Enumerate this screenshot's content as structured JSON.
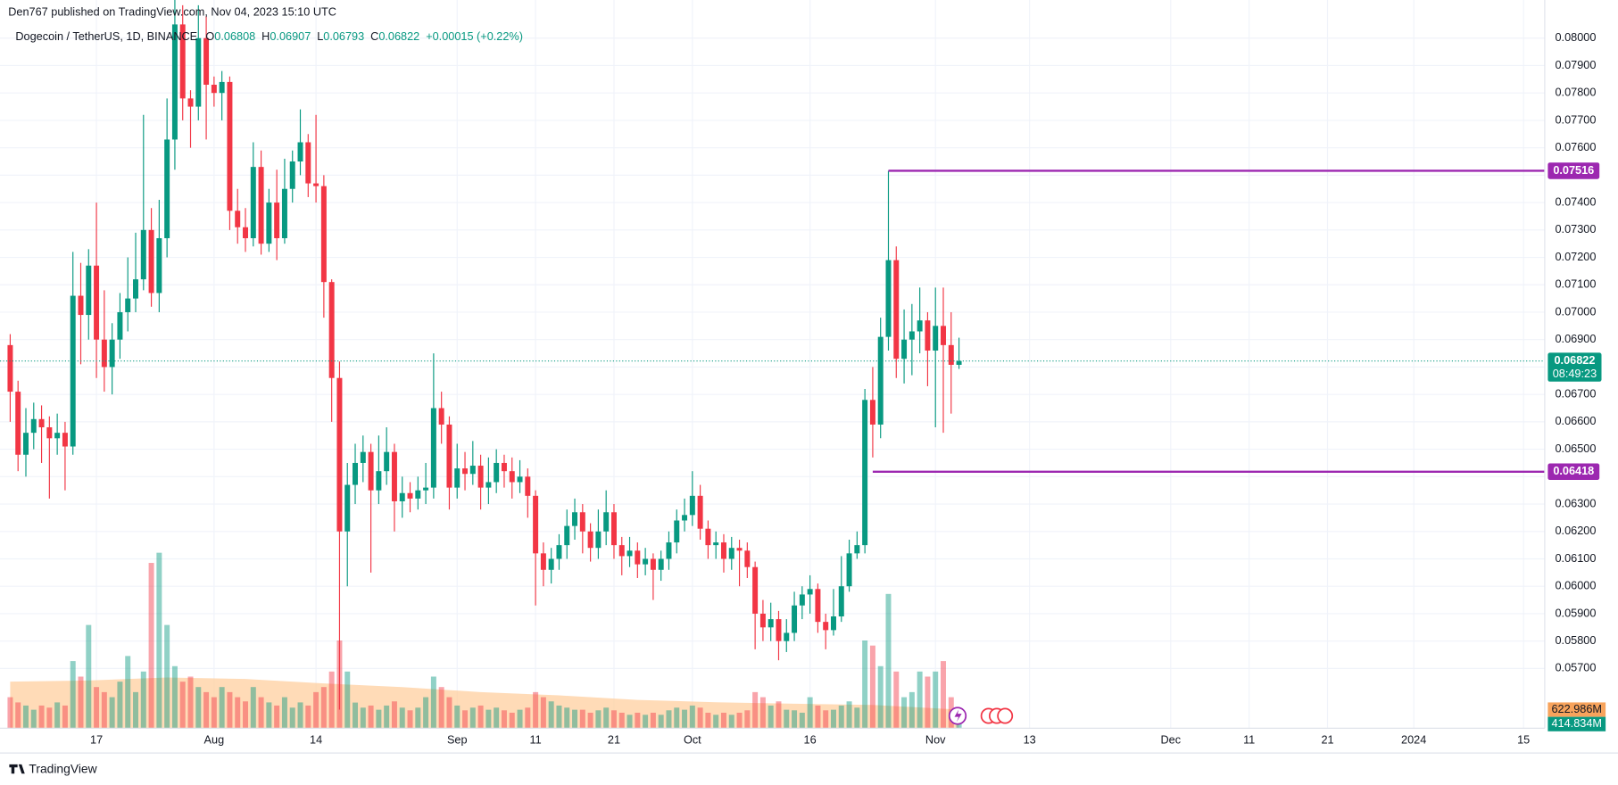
{
  "chart_data": {
    "type": "candlestick",
    "header": "Den767 published on TradingView.com, Nov 04, 2023 15:10 UTC",
    "symbol": "Dogecoin / TetherUS, 1D, BINANCE",
    "legend_keys": [
      "O",
      "H",
      "L",
      "C"
    ],
    "change_label": "+0.00015 (+0.22%)",
    "countdown": "08:49:23",
    "footer": "TradingView",
    "up_color": "#089981",
    "down_color": "#f23645",
    "level_color": "#9c27b0",
    "ma_color": "#ffcc99",
    "xlim": [
      -1.3,
      195.7
    ],
    "xticks": [
      {
        "value": 11,
        "label": "17"
      },
      {
        "value": 26,
        "label": "Aug"
      },
      {
        "value": 39,
        "label": "14"
      },
      {
        "value": 57,
        "label": "Sep"
      },
      {
        "value": 67,
        "label": "11"
      },
      {
        "value": 77,
        "label": "21"
      },
      {
        "value": 87,
        "label": "Oct"
      },
      {
        "value": 102,
        "label": "16"
      },
      {
        "value": 118,
        "label": "Nov"
      },
      {
        "value": 130,
        "label": "13"
      },
      {
        "value": 148,
        "label": "Dec"
      },
      {
        "value": 158,
        "label": "11"
      },
      {
        "value": 168,
        "label": "21"
      },
      {
        "value": 179,
        "label": "2024"
      },
      {
        "value": 193,
        "label": "15"
      }
    ],
    "ylim": [
      0.05482,
      0.08139
    ],
    "yticks": [
      {
        "value": 0.057,
        "label": "0.05700"
      },
      {
        "value": 0.058,
        "label": "0.05800"
      },
      {
        "value": 0.059,
        "label": "0.05900"
      },
      {
        "value": 0.06,
        "label": "0.06000"
      },
      {
        "value": 0.061,
        "label": "0.06100"
      },
      {
        "value": 0.062,
        "label": "0.06200"
      },
      {
        "value": 0.063,
        "label": "0.06300"
      },
      {
        "value": 0.064,
        "label": "0.06400"
      },
      {
        "value": 0.065,
        "label": "0.06500"
      },
      {
        "value": 0.066,
        "label": "0.06600"
      },
      {
        "value": 0.067,
        "label": "0.06700"
      },
      {
        "value": 0.068,
        "label": "0.06800"
      },
      {
        "value": 0.069,
        "label": "0.06900"
      },
      {
        "value": 0.07,
        "label": "0.07000"
      },
      {
        "value": 0.071,
        "label": "0.07100"
      },
      {
        "value": 0.072,
        "label": "0.07200"
      },
      {
        "value": 0.073,
        "label": "0.07300"
      },
      {
        "value": 0.074,
        "label": "0.07400"
      },
      {
        "value": 0.075,
        "label": "0.07500"
      },
      {
        "value": 0.076,
        "label": "0.07600"
      },
      {
        "value": 0.077,
        "label": "0.07700"
      },
      {
        "value": 0.078,
        "label": "0.07800"
      },
      {
        "value": 0.079,
        "label": "0.07900"
      },
      {
        "value": 0.08,
        "label": "0.08000"
      }
    ],
    "grid": true,
    "open": [
      0.0688,
      0.0671,
      0.0648,
      0.0656,
      0.0661,
      0.0658,
      0.0654,
      0.0656,
      0.0651,
      0.0706,
      0.0699,
      0.0717,
      0.069,
      0.068,
      0.069,
      0.07,
      0.0705,
      0.0712,
      0.073,
      0.0707,
      0.0727,
      0.0763,
      0.0805,
      0.0778,
      0.0775,
      0.08,
      0.0783,
      0.078,
      0.0784,
      0.0737,
      0.0731,
      0.0727,
      0.0753,
      0.0725,
      0.074,
      0.0727,
      0.0745,
      0.0755,
      0.0762,
      0.0747,
      0.0746,
      0.0711,
      0.0676,
      0.062,
      0.0637,
      0.0645,
      0.0649,
      0.0635,
      0.0642,
      0.0649,
      0.0631,
      0.0634,
      0.0632,
      0.0635,
      0.0636,
      0.0665,
      0.0659,
      0.0636,
      0.0643,
      0.0641,
      0.0644,
      0.0636,
      0.0638,
      0.0645,
      0.0642,
      0.0638,
      0.064,
      0.0633,
      0.0612,
      0.0606,
      0.061,
      0.0615,
      0.0622,
      0.0627,
      0.062,
      0.0614,
      0.062,
      0.0627,
      0.0615,
      0.0611,
      0.0613,
      0.0608,
      0.061,
      0.0606,
      0.061,
      0.0616,
      0.0624,
      0.0626,
      0.0633,
      0.0621,
      0.0615,
      0.0616,
      0.061,
      0.0614,
      0.0613,
      0.0607,
      0.059,
      0.0585,
      0.0588,
      0.058,
      0.0583,
      0.0593,
      0.0597,
      0.0599,
      0.0587,
      0.0584,
      0.0589,
      0.06,
      0.0612,
      0.0615,
      0.0668,
      0.0659,
      0.0691,
      0.0719,
      0.0683,
      0.069,
      0.0693,
      0.0697,
      0.0686,
      0.0695,
      0.0688,
      0.06808
    ],
    "high": [
      0.0692,
      0.0675,
      0.0665,
      0.0667,
      0.0666,
      0.0662,
      0.0663,
      0.066,
      0.0722,
      0.0718,
      0.0723,
      0.074,
      0.0708,
      0.0696,
      0.0707,
      0.072,
      0.0729,
      0.0772,
      0.0738,
      0.0741,
      0.0778,
      0.0815,
      0.0812,
      0.0781,
      0.0812,
      0.0808,
      0.0786,
      0.0788,
      0.0786,
      0.0745,
      0.0738,
      0.0762,
      0.0759,
      0.0745,
      0.0752,
      0.0756,
      0.0759,
      0.0774,
      0.0765,
      0.0772,
      0.075,
      0.0712,
      0.0682,
      0.0645,
      0.0652,
      0.0655,
      0.0652,
      0.0655,
      0.0658,
      0.0652,
      0.064,
      0.0638,
      0.064,
      0.0645,
      0.0685,
      0.0671,
      0.0662,
      0.0652,
      0.0649,
      0.0653,
      0.0648,
      0.0647,
      0.065,
      0.0648,
      0.0647,
      0.0646,
      0.0643,
      0.0635,
      0.0616,
      0.0614,
      0.0619,
      0.0628,
      0.0632,
      0.063,
      0.0623,
      0.0628,
      0.0635,
      0.063,
      0.0618,
      0.0618,
      0.0616,
      0.0614,
      0.0612,
      0.0613,
      0.062,
      0.0628,
      0.0632,
      0.0642,
      0.0637,
      0.0624,
      0.062,
      0.0619,
      0.0618,
      0.0617,
      0.0616,
      0.0609,
      0.0595,
      0.0594,
      0.0591,
      0.0588,
      0.0598,
      0.06,
      0.0604,
      0.0601,
      0.059,
      0.0599,
      0.0611,
      0.0617,
      0.062,
      0.0672,
      0.068,
      0.0698,
      0.07516,
      0.0724,
      0.0701,
      0.0703,
      0.0709,
      0.07,
      0.0709,
      0.0709,
      0.07,
      0.06907
    ],
    "low": [
      0.066,
      0.0642,
      0.064,
      0.065,
      0.0645,
      0.0632,
      0.0648,
      0.0635,
      0.0648,
      0.0681,
      0.069,
      0.0676,
      0.0671,
      0.067,
      0.0683,
      0.0693,
      0.07,
      0.0708,
      0.0702,
      0.07,
      0.072,
      0.0752,
      0.077,
      0.076,
      0.077,
      0.0763,
      0.0775,
      0.077,
      0.073,
      0.0725,
      0.0722,
      0.0724,
      0.0721,
      0.0722,
      0.0719,
      0.0725,
      0.074,
      0.075,
      0.0742,
      0.074,
      0.0698,
      0.066,
      0.0555,
      0.06,
      0.063,
      0.0638,
      0.0605,
      0.063,
      0.0637,
      0.062,
      0.0625,
      0.0627,
      0.0628,
      0.063,
      0.0632,
      0.0652,
      0.0628,
      0.0632,
      0.0635,
      0.0637,
      0.0628,
      0.063,
      0.0634,
      0.0636,
      0.0632,
      0.0634,
      0.0625,
      0.0593,
      0.06,
      0.0601,
      0.0606,
      0.061,
      0.0617,
      0.0612,
      0.0609,
      0.061,
      0.0615,
      0.061,
      0.0604,
      0.0607,
      0.0603,
      0.0604,
      0.0595,
      0.0602,
      0.0606,
      0.0612,
      0.062,
      0.0622,
      0.0617,
      0.061,
      0.061,
      0.0605,
      0.0606,
      0.06,
      0.0603,
      0.0577,
      0.058,
      0.058,
      0.0573,
      0.0576,
      0.058,
      0.0588,
      0.059,
      0.0583,
      0.0577,
      0.0582,
      0.0587,
      0.0598,
      0.061,
      0.0612,
      0.0647,
      0.0654,
      0.0686,
      0.0676,
      0.0674,
      0.0677,
      0.0685,
      0.0673,
      0.0658,
      0.0656,
      0.0663,
      0.06793
    ],
    "close": [
      0.0671,
      0.0648,
      0.0656,
      0.0661,
      0.0658,
      0.0654,
      0.0656,
      0.0651,
      0.0706,
      0.0699,
      0.0717,
      0.069,
      0.068,
      0.069,
      0.07,
      0.0705,
      0.0712,
      0.073,
      0.0707,
      0.0727,
      0.0763,
      0.0805,
      0.0778,
      0.0775,
      0.08,
      0.0783,
      0.078,
      0.0784,
      0.0737,
      0.0731,
      0.0727,
      0.0753,
      0.0725,
      0.074,
      0.0727,
      0.0745,
      0.0755,
      0.0762,
      0.0747,
      0.0746,
      0.0711,
      0.0676,
      0.062,
      0.0637,
      0.0645,
      0.0649,
      0.0635,
      0.0642,
      0.0649,
      0.0631,
      0.0634,
      0.0632,
      0.0635,
      0.0636,
      0.0665,
      0.0659,
      0.0636,
      0.0643,
      0.0641,
      0.0644,
      0.0636,
      0.0638,
      0.0645,
      0.0642,
      0.0638,
      0.064,
      0.0633,
      0.0612,
      0.0606,
      0.061,
      0.0615,
      0.0622,
      0.0627,
      0.062,
      0.0614,
      0.062,
      0.0627,
      0.0615,
      0.0611,
      0.0613,
      0.0608,
      0.061,
      0.0606,
      0.061,
      0.0616,
      0.0624,
      0.0626,
      0.0633,
      0.0621,
      0.0615,
      0.0616,
      0.061,
      0.0614,
      0.0613,
      0.0607,
      0.059,
      0.0585,
      0.0588,
      0.058,
      0.0583,
      0.0593,
      0.0597,
      0.0599,
      0.0587,
      0.0584,
      0.0589,
      0.06,
      0.0612,
      0.0615,
      0.0668,
      0.0659,
      0.0691,
      0.0719,
      0.0683,
      0.069,
      0.0693,
      0.0697,
      0.0686,
      0.0695,
      0.0688,
      0.06808,
      0.06822
    ],
    "vlim": [
      0,
      24400
    ],
    "volume": [
      1040,
      865,
      760,
      620,
      760,
      690,
      865,
      760,
      2250,
      1730,
      3460,
      1380,
      1210,
      1040,
      1560,
      2420,
      1210,
      1900,
      5540,
      5880,
      3460,
      2080,
      1560,
      1730,
      1380,
      1210,
      1040,
      1380,
      1210,
      1040,
      900,
      1380,
      1040,
      865,
      760,
      1040,
      690,
      865,
      760,
      1210,
      1380,
      1900,
      2940,
      1900,
      860,
      690,
      760,
      620,
      760,
      900,
      690,
      600,
      690,
      1040,
      1730,
      1380,
      1040,
      760,
      600,
      690,
      760,
      620,
      690,
      600,
      520,
      620,
      690,
      1210,
      1040,
      900,
      760,
      690,
      620,
      620,
      520,
      600,
      690,
      600,
      520,
      450,
      520,
      450,
      520,
      450,
      600,
      690,
      620,
      760,
      690,
      520,
      450,
      520,
      450,
      520,
      600,
      1210,
      1040,
      760,
      900,
      620,
      600,
      520,
      1040,
      760,
      600,
      620,
      760,
      900,
      690,
      2940,
      2770,
      2080,
      4500,
      1900,
      1040,
      1210,
      1900,
      1730,
      1900,
      2250,
      1040,
      414.834
    ],
    "volume_label": "414.834M",
    "volume_ma": {
      "x": [
        0,
        10,
        20,
        30,
        40,
        50,
        60,
        70,
        80,
        90,
        100,
        110,
        120,
        121
      ],
      "values": [
        1560,
        1600,
        1700,
        1650,
        1500,
        1380,
        1210,
        1100,
        950,
        870,
        820,
        780,
        640,
        622.986
      ],
      "label": "622.986M"
    },
    "levels": [
      {
        "value": 0.07516,
        "label": "0.07516",
        "from": 112
      },
      {
        "value": 0.06418,
        "label": "0.06418",
        "from": 110
      }
    ]
  }
}
